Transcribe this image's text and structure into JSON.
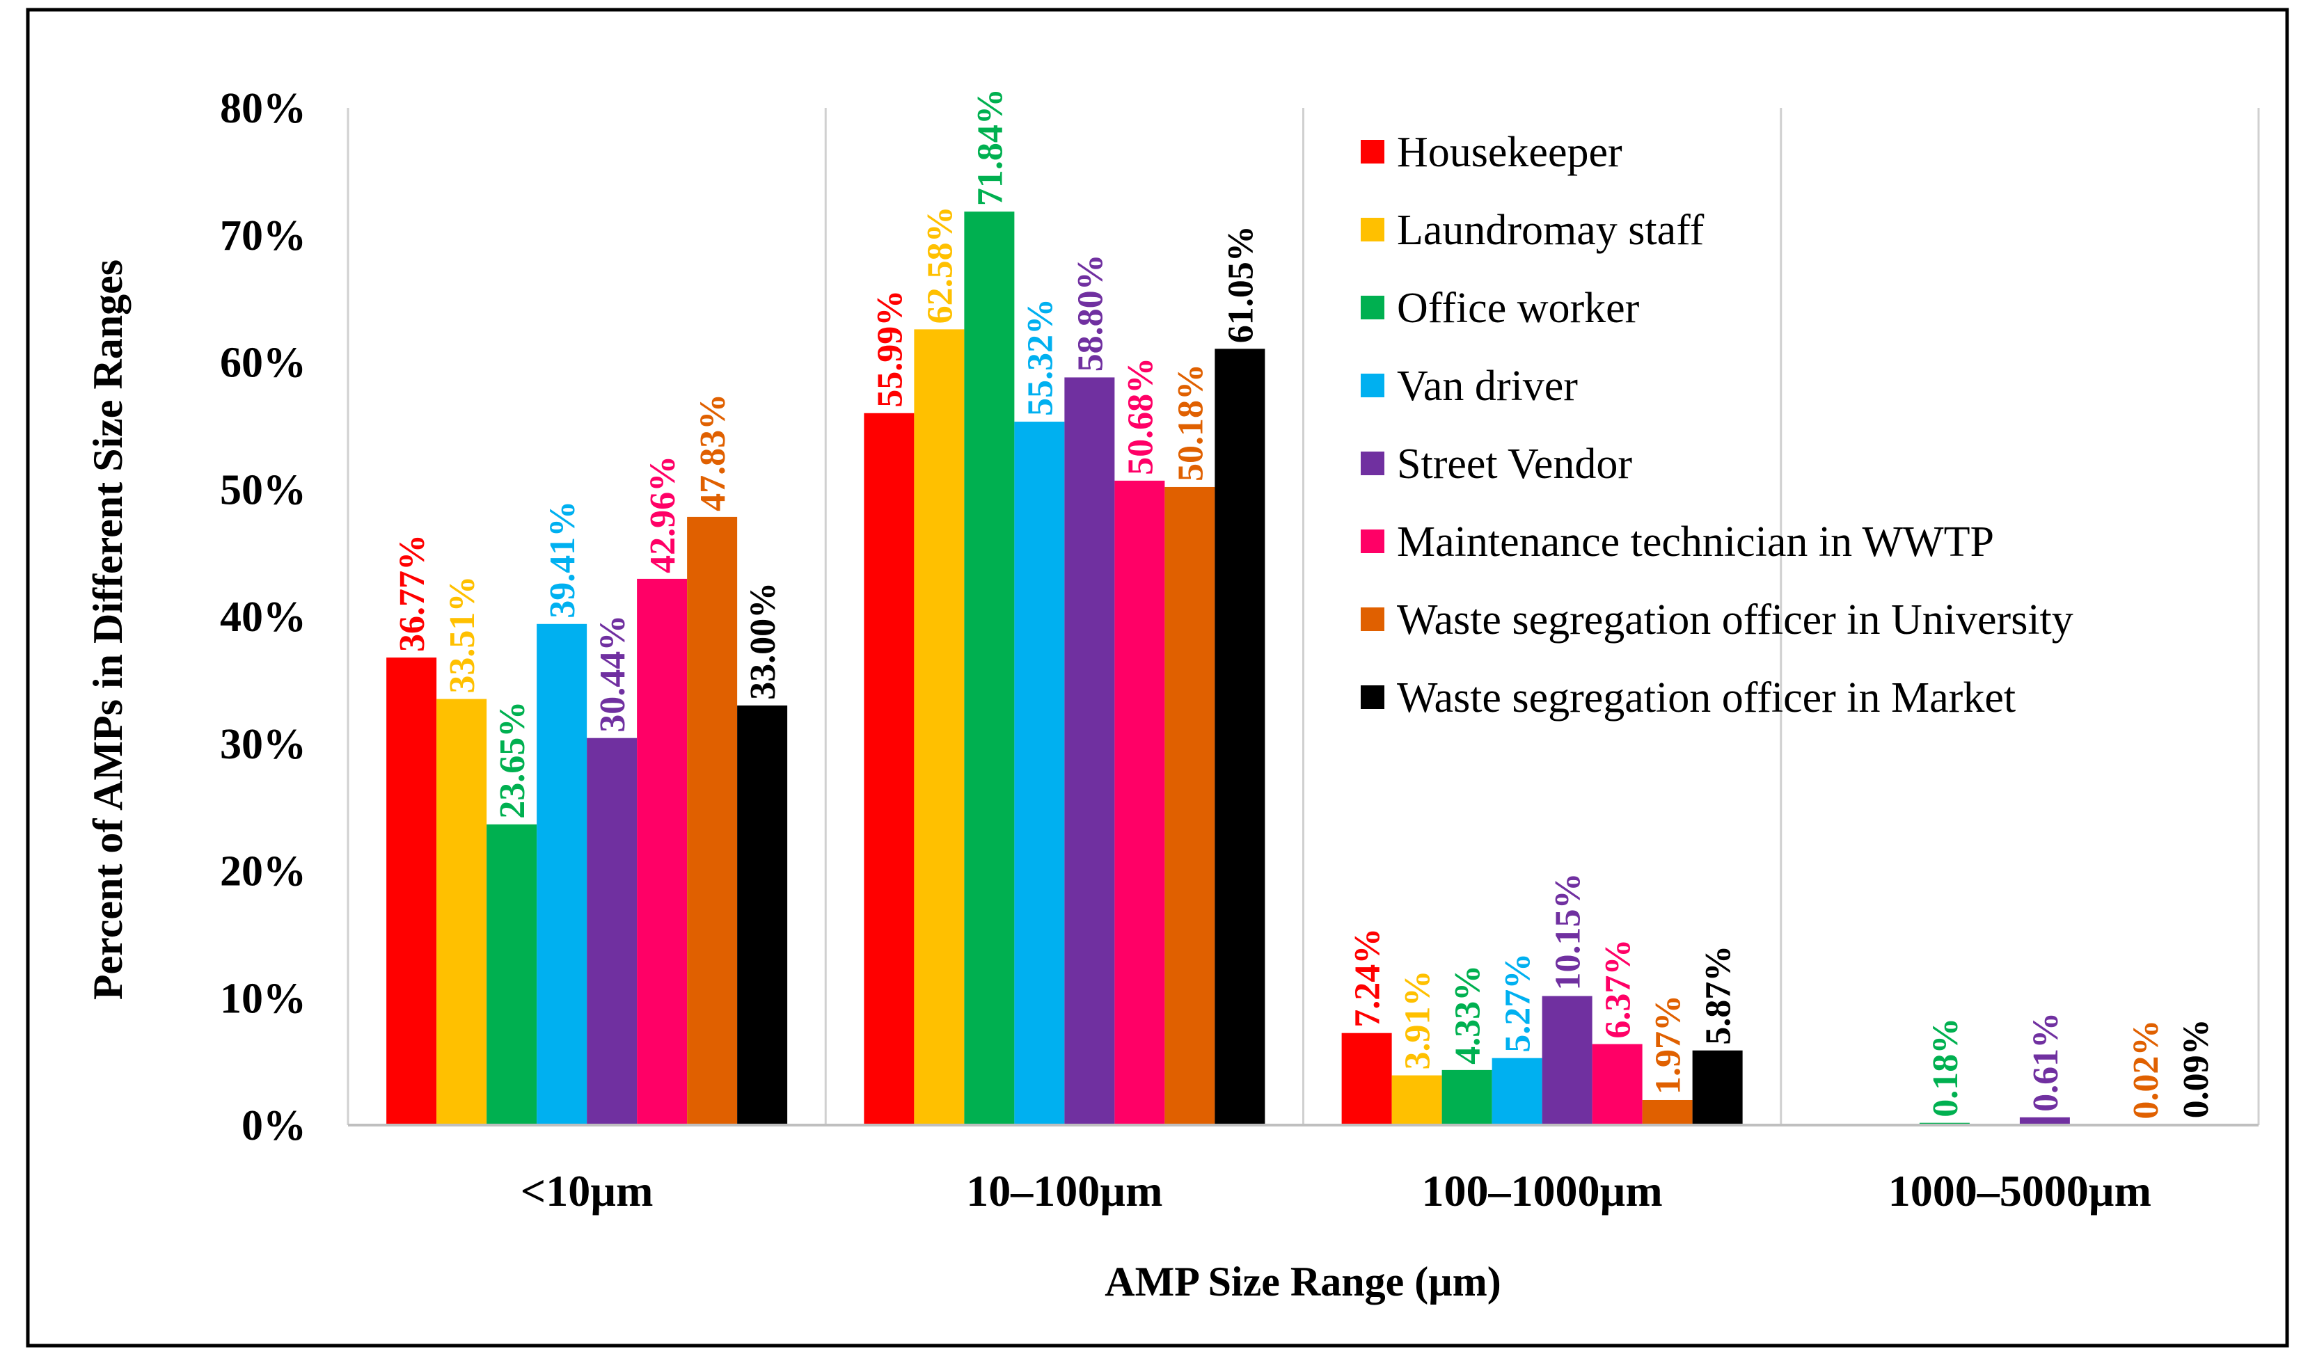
{
  "chart_data": {
    "type": "bar",
    "title": "",
    "xlabel": "AMP Size Range (µm)",
    "ylabel": "Percent of AMPs in Different  Size Ranges",
    "ylim": [
      0,
      80
    ],
    "yticks": [
      0,
      10,
      20,
      30,
      40,
      50,
      60,
      70,
      80
    ],
    "ytick_labels": [
      "0%",
      "10%",
      "20%",
      "30%",
      "40%",
      "50%",
      "60%",
      "70%",
      "80%"
    ],
    "categories": [
      "<10µm",
      "10–100µm",
      "100–1000µm",
      "1000–5000µm"
    ],
    "legend_position": "top-right",
    "grid": "vertical separators between categories",
    "series": [
      {
        "name": "Housekeeper",
        "color": "#FF0000",
        "values": [
          36.77,
          55.99,
          7.24,
          0
        ],
        "labels": [
          "36.77%",
          "55.99%",
          "7.24%",
          ""
        ]
      },
      {
        "name": "Laundromay staff",
        "color": "#FFC000",
        "values": [
          33.51,
          62.58,
          3.91,
          0
        ],
        "labels": [
          "33.51%",
          "62.58%",
          "3.91%",
          ""
        ]
      },
      {
        "name": "Office worker",
        "color": "#00B050",
        "values": [
          23.65,
          71.84,
          4.33,
          0.18
        ],
        "labels": [
          "23.65%",
          "71.84%",
          "4.33%",
          "0.18%"
        ]
      },
      {
        "name": "Van driver",
        "color": "#00B0F0",
        "values": [
          39.41,
          55.32,
          5.27,
          0
        ],
        "labels": [
          "39.41%",
          "55.32%",
          "5.27%",
          ""
        ]
      },
      {
        "name": "Street Vendor",
        "color": "#7030A0",
        "values": [
          30.44,
          58.8,
          10.15,
          0.61
        ],
        "labels": [
          "30.44%",
          "58.80%",
          "10.15%",
          "0.61%"
        ]
      },
      {
        "name": "Maintenance technician in WWTP",
        "color": "#FF0066",
        "values": [
          42.96,
          50.68,
          6.37,
          0
        ],
        "labels": [
          "42.96%",
          "50.68%",
          "6.37%",
          ""
        ]
      },
      {
        "name": "Waste segregation officer in University",
        "color": "#E06000",
        "values": [
          47.83,
          50.18,
          1.97,
          0.02
        ],
        "labels": [
          "47.83%",
          "50.18%",
          "1.97%",
          "0.02%"
        ]
      },
      {
        "name": "Waste segregation officer in Market",
        "color": "#000000",
        "values": [
          33.0,
          61.05,
          5.87,
          0.09
        ],
        "labels": [
          "33.00%",
          "61.05%",
          "5.87%",
          "0.09%"
        ]
      }
    ]
  }
}
